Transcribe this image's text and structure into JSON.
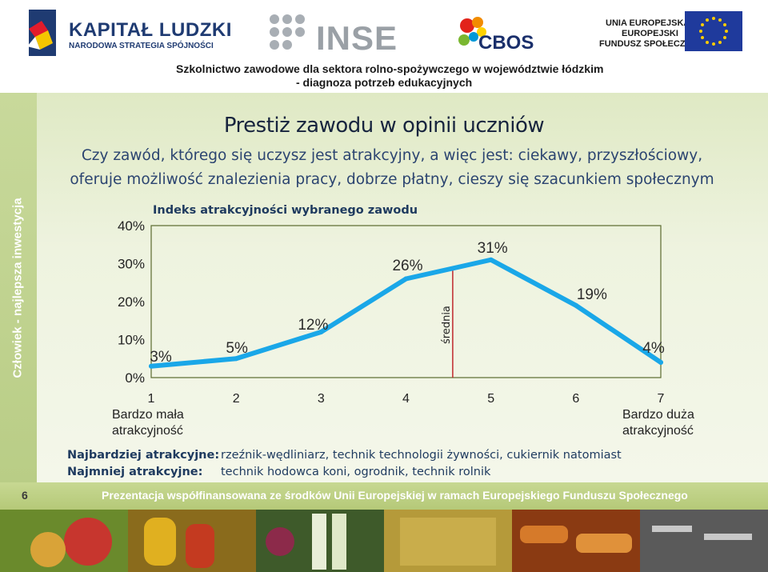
{
  "header": {
    "kapital_title": "KAPITAŁ LUDZKI",
    "kapital_subtitle": "NARODOWA STRATEGIA SPÓJNOŚCI",
    "inse": "INSE",
    "cbos": "CBOS",
    "ue_line1": "UNIA EUROPEJSKA",
    "ue_line2": "EUROPEJSKI",
    "ue_line3": "FUNDUSZ SPOŁECZNY",
    "project_line1": "Szkolnictwo zawodowe dla sektora rolno-spożywczego w województwie łódzkim",
    "project_line2": "- diagnoza potrzeb edukacyjnych"
  },
  "side_text": "Człowiek - najlepsza inwestycja",
  "slide": {
    "title": "Prestiż zawodu w opinii uczniów",
    "question_line1": "Czy zawód, którego się uczysz jest atrakcyjny, a więc jest: ciekawy, przyszłościowy,",
    "question_line2": "oferuje możliwość znalezienia pracy, dobrze płatny, cieszy się szacunkiem społecznym"
  },
  "chart_data": {
    "type": "line",
    "title": "Indeks atrakcyjności wybranego zawodu",
    "x": [
      1,
      2,
      3,
      4,
      5,
      6,
      7
    ],
    "x_tick_labels": [
      "1",
      "2",
      "3",
      "4",
      "5",
      "6",
      "7"
    ],
    "y_tick_labels": [
      "0%",
      "10%",
      "20%",
      "30%",
      "40%"
    ],
    "ylim": [
      0,
      40
    ],
    "series": [
      {
        "values": [
          3,
          5,
          12,
          26,
          31,
          19,
          4
        ],
        "color": "#1aa7e8"
      }
    ],
    "data_labels": [
      "3%",
      "5%",
      "12%",
      "26%",
      "31%",
      "19%",
      "4%"
    ],
    "mean_line": {
      "x": 4.55,
      "label": "średnia",
      "color": "#c0282d"
    },
    "x_left_caption": [
      "Bardzo mała",
      "atrakcyjność"
    ],
    "x_right_caption": [
      "Bardzo duża",
      "atrakcyjność"
    ],
    "grid": false
  },
  "summary": {
    "most_label": "Najbardziej atrakcyjne:",
    "most_value": "rzeźnik-wędliniarz, technik technologii żywności, cukiernik natomiast",
    "least_label": "Najmniej atrakcyjne:",
    "least_value": "technik hodowca koni, ogrodnik, technik rolnik"
  },
  "footer": {
    "page_number": "6",
    "text": "Prezentacja współfinansowana ze środków Unii Europejskiej w ramach Europejskiego Funduszu Społecznego"
  },
  "colors": {
    "accent_line": "#1aa7e8",
    "mean_line": "#c0282d",
    "band_green": "#b5c978"
  }
}
